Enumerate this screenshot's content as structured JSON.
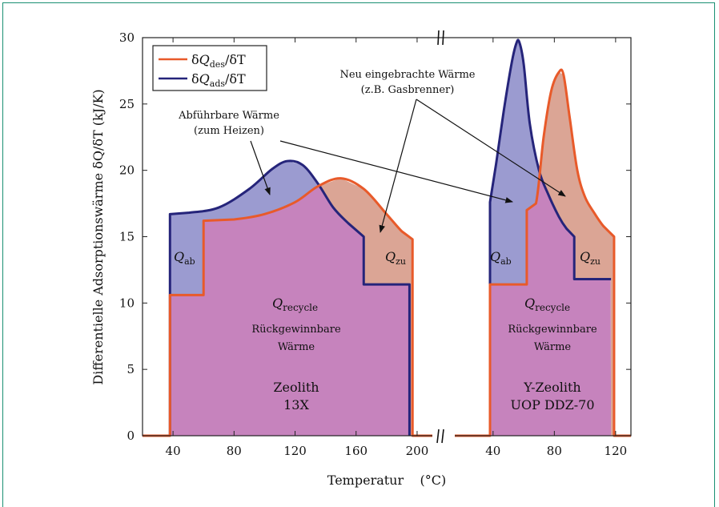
{
  "chart_data": {
    "type": "area",
    "ylabel": "Differentielle  Adsorptionswärme δQ/δT  (kJ/K)",
    "xlabel": "Temperatur    (°C)",
    "ylim": [
      0,
      30
    ],
    "yticks": [
      0,
      5,
      10,
      15,
      20,
      25,
      30
    ],
    "grid": false,
    "legend_position": "top-left",
    "legend": [
      {
        "label": "δQ_des/δT",
        "color": "#e85a2a"
      },
      {
        "label": "δQ_ads/δT",
        "color": "#25247a"
      }
    ],
    "colors": {
      "des_line": "#e85a2a",
      "ads_line": "#25247a",
      "recycle_fill": "#c683bd",
      "ab_fill": "#9b9bd0",
      "zu_fill": "#dba595"
    },
    "panels": [
      {
        "name": "Zeolith 13X",
        "label_lines": [
          "Zeolith",
          "13X"
        ],
        "xlim": [
          20,
          210
        ],
        "xticks": [
          40,
          80,
          120,
          160,
          200
        ],
        "series": [
          {
            "name": "δQ_des/δT",
            "x": [
              20,
              38,
              38,
              60,
              60,
              80,
              100,
              120,
              135,
              150,
              165,
              180,
              190,
              197,
              197,
              210
            ],
            "y": [
              0,
              0,
              10.6,
              10.6,
              16.2,
              16.3,
              16.7,
              17.6,
              18.8,
              19.4,
              18.6,
              16.7,
              15.4,
              14.8,
              0,
              0
            ]
          },
          {
            "name": "δQ_ads/δT",
            "x": [
              38,
              38,
              50,
              70,
              90,
              105,
              115,
              125,
              135,
              145,
              155,
              165,
              165,
              195,
              195
            ],
            "y": [
              0,
              16.7,
              16.8,
              17.2,
              18.6,
              20.1,
              20.7,
              20.4,
              19.0,
              17.2,
              16.0,
              15.0,
              11.4,
              11.4,
              0
            ]
          }
        ],
        "labels": {
          "ab": "Q_ab",
          "zu": "Q_zu",
          "recycle": "Q_recycle",
          "recycle_desc": [
            "Rückgewinnbare",
            "Wärme"
          ]
        }
      },
      {
        "name": "Y-Zeolith UOP DDZ-70",
        "label_lines": [
          "Y-Zeolith",
          "UOP DDZ-70"
        ],
        "xlim": [
          15,
          130
        ],
        "xticks": [
          40,
          80,
          120
        ],
        "series": [
          {
            "name": "δQ_des/δT",
            "x": [
              15,
              38,
              38,
              62,
              62,
              68,
              73,
              78,
              83,
              86,
              90,
              95,
              100,
              106,
              112,
              119,
              119,
              130
            ],
            "y": [
              0,
              0,
              11.4,
              11.4,
              17.0,
              17.5,
              22.5,
              26.0,
              27.4,
              27.2,
              24.0,
              20.0,
              18.0,
              16.8,
              15.8,
              15.0,
              0,
              0
            ]
          },
          {
            "name": "δQ_ads/δT",
            "x": [
              38,
              38,
              42,
              47,
              52,
              55,
              57,
              60,
              64,
              70,
              76,
              83,
              88,
              93,
              93,
              117
            ],
            "y": [
              0,
              17.6,
              20.5,
              24.5,
              28.0,
              29.5,
              29.7,
              28.0,
              23.5,
              20.0,
              18.2,
              16.5,
              15.6,
              15.0,
              11.8,
              11.8
            ]
          }
        ],
        "labels": {
          "ab": "Q_ab",
          "zu": "Q_zu",
          "recycle": "Q_recycle",
          "recycle_desc": [
            "Rückgewinnbare",
            "Wärme"
          ]
        }
      }
    ],
    "annotations": {
      "abfuehrbar": [
        "Abführbare Wärme",
        "(zum Heizen)"
      ],
      "neu": [
        "Neu eingebrachte Wärme",
        "(z.B. Gasbrenner)"
      ]
    }
  }
}
